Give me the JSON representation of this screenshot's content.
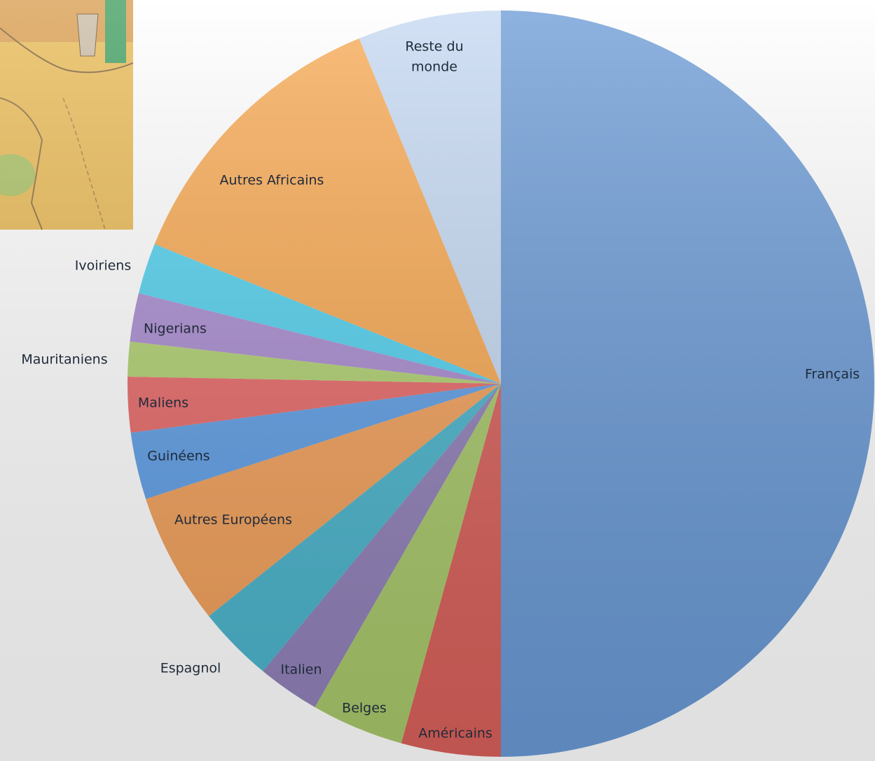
{
  "chart_data": {
    "type": "pie",
    "categories": [
      "Français",
      "Américains",
      "Belges",
      "Italien",
      "Espagnol",
      "Autres Européens",
      "Guinéens",
      "Maliens",
      "Mauritaniens",
      "Nigerians",
      "Ivoiriens",
      "Autres Africains",
      "Reste du monde"
    ],
    "values": [
      50,
      4.3,
      4,
      2.7,
      3.3,
      5.7,
      2.9,
      2.4,
      1.5,
      2.1,
      2.2,
      12.7,
      6.2
    ],
    "colors": [
      "#6a9ad6",
      "#d9605a",
      "#a8c86a",
      "#9080b8",
      "#4ab4cc",
      "#f2a05a",
      "#5e9ee6",
      "#e86868",
      "#b0d070",
      "#a88ad0",
      "#50d0ee",
      "#f8a850",
      "#c4d8f2"
    ]
  }
}
